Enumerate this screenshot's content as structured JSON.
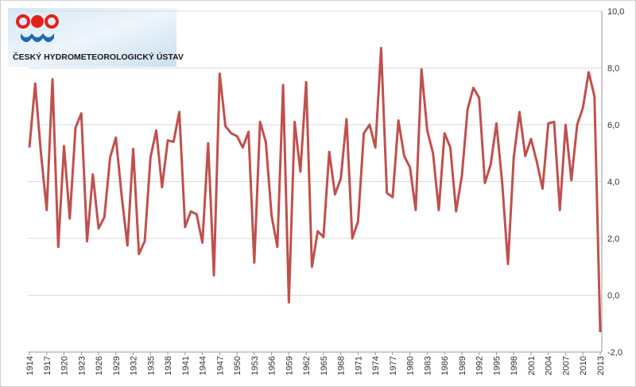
{
  "logo": {
    "text": "ČESKÝ HYDROMETEOROLOGICKÝ ÚSTAV"
  },
  "chart_data": {
    "type": "line",
    "x": [
      1914,
      1915,
      1916,
      1917,
      1918,
      1919,
      1920,
      1921,
      1922,
      1923,
      1924,
      1925,
      1926,
      1927,
      1928,
      1929,
      1930,
      1931,
      1932,
      1933,
      1934,
      1935,
      1936,
      1937,
      1938,
      1939,
      1940,
      1941,
      1942,
      1943,
      1944,
      1945,
      1946,
      1947,
      1948,
      1949,
      1950,
      1951,
      1952,
      1953,
      1954,
      1955,
      1956,
      1957,
      1958,
      1959,
      1960,
      1961,
      1962,
      1963,
      1964,
      1965,
      1966,
      1967,
      1968,
      1969,
      1970,
      1971,
      1972,
      1973,
      1974,
      1975,
      1976,
      1977,
      1978,
      1979,
      1980,
      1981,
      1982,
      1983,
      1984,
      1985,
      1986,
      1987,
      1988,
      1989,
      1990,
      1991,
      1992,
      1993,
      1994,
      1995,
      1996,
      1997,
      1998,
      1999,
      2000,
      2001,
      2002,
      2003,
      2004,
      2005,
      2006,
      2007,
      2008,
      2009,
      2010,
      2011,
      2012,
      2013
    ],
    "series": [
      {
        "color": "#c0504d",
        "values": [
          5.2,
          7.45,
          5.0,
          3.0,
          7.6,
          1.7,
          5.25,
          2.7,
          5.9,
          6.4,
          1.9,
          4.25,
          2.35,
          2.75,
          4.85,
          5.55,
          3.5,
          1.75,
          5.15,
          1.45,
          1.9,
          4.85,
          5.8,
          3.8,
          5.45,
          5.4,
          6.45,
          2.4,
          2.95,
          2.85,
          1.85,
          5.35,
          0.7,
          7.8,
          5.95,
          5.7,
          5.6,
          5.2,
          5.75,
          1.15,
          6.1,
          5.4,
          2.8,
          1.7,
          7.4,
          -0.25,
          6.1,
          4.35,
          7.5,
          1.0,
          2.25,
          2.05,
          5.05,
          3.55,
          4.1,
          6.2,
          2.0,
          2.6,
          5.7,
          6.0,
          5.2,
          8.7,
          3.6,
          3.45,
          6.15,
          4.9,
          4.5,
          3.0,
          7.95,
          5.8,
          5.0,
          3.0,
          5.7,
          5.2,
          2.95,
          4.2,
          6.55,
          7.3,
          6.95,
          3.95,
          4.6,
          6.05,
          3.95,
          1.1,
          4.85,
          6.45,
          4.9,
          5.5,
          4.7,
          3.75,
          6.05,
          6.1,
          3.0,
          6.0,
          4.05,
          6.0,
          6.6,
          7.85,
          7.0,
          -1.3
        ]
      }
    ],
    "xlim": [
      1914,
      2013
    ],
    "xticks": [
      1914,
      1917,
      1920,
      1923,
      1926,
      1929,
      1932,
      1935,
      1938,
      1941,
      1944,
      1947,
      1950,
      1953,
      1956,
      1959,
      1962,
      1965,
      1968,
      1971,
      1974,
      1977,
      1980,
      1983,
      1986,
      1989,
      1992,
      1995,
      1998,
      2001,
      2004,
      2007,
      2010,
      2013
    ],
    "ylim": [
      -2,
      10
    ],
    "yticks": [
      {
        "value": -2,
        "label": "-2,0"
      },
      {
        "value": 0,
        "label": "0,0"
      },
      {
        "value": 2,
        "label": "2,0"
      },
      {
        "value": 4,
        "label": "4,0"
      },
      {
        "value": 6,
        "label": "6,0"
      },
      {
        "value": 8,
        "label": "8,0"
      },
      {
        "value": 10,
        "label": "10,0"
      }
    ],
    "grid": true
  }
}
